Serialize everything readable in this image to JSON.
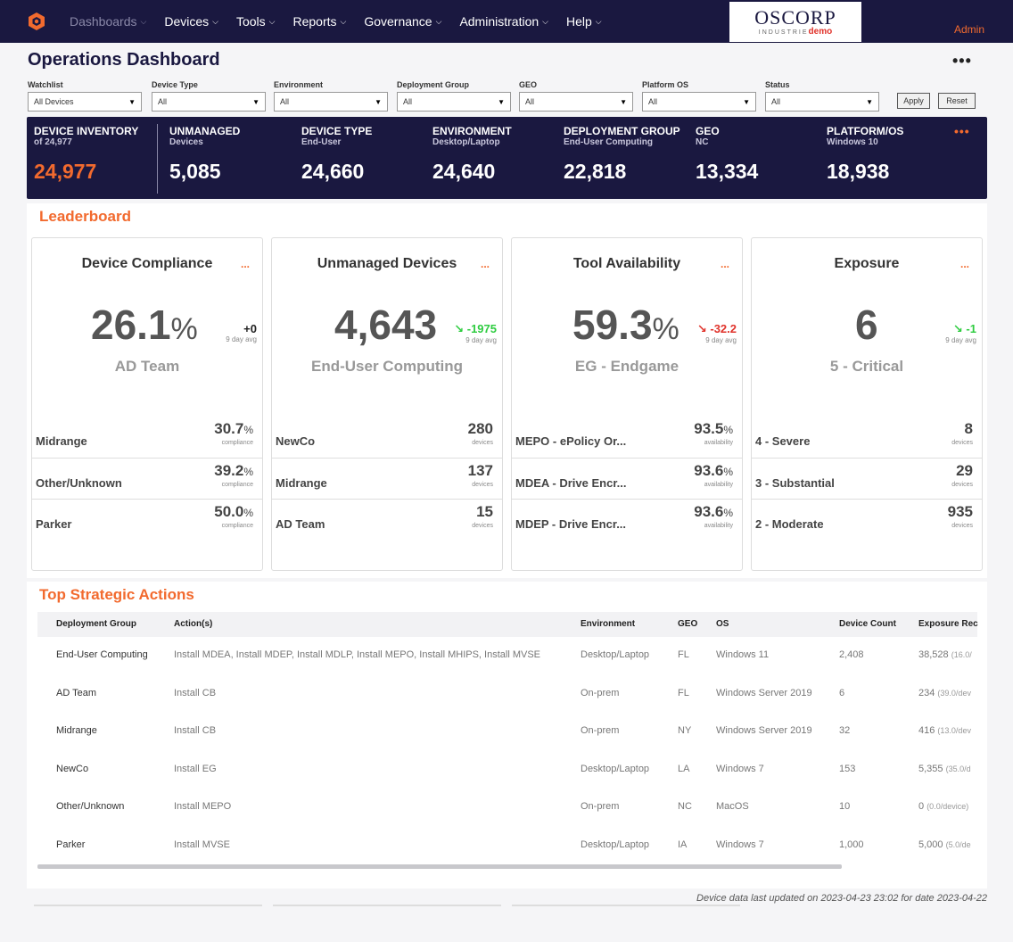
{
  "nav": {
    "items": [
      {
        "label": "Dashboards",
        "dim": true
      },
      {
        "label": "Devices"
      },
      {
        "label": "Tools"
      },
      {
        "label": "Reports"
      },
      {
        "label": "Governance"
      },
      {
        "label": "Administration"
      },
      {
        "label": "Help"
      }
    ],
    "brand_name": "OSCORP",
    "brand_sub": "INDUSTRIE",
    "brand_demo": "demo",
    "user": "Admin"
  },
  "page": {
    "title": "Operations Dashboard",
    "menu": "•••"
  },
  "filters": [
    {
      "label": "Watchlist",
      "value": "All Devices"
    },
    {
      "label": "Device Type",
      "value": "All"
    },
    {
      "label": "Environment",
      "value": "All"
    },
    {
      "label": "Deployment Group",
      "value": "All"
    },
    {
      "label": "GEO",
      "value": "All"
    },
    {
      "label": "Platform OS",
      "value": "All"
    },
    {
      "label": "Status",
      "value": "All"
    }
  ],
  "buttons": {
    "apply": "Apply",
    "reset": "Reset"
  },
  "kpi": {
    "menu": "•••",
    "cells": [
      {
        "label": "DEVICE INVENTORY",
        "sub": "of 24,977",
        "value": "24,977"
      },
      {
        "label": "UNMANAGED",
        "sub": "Devices",
        "value": "5,085"
      },
      {
        "label": "DEVICE TYPE",
        "sub": "End-User",
        "value": "24,660"
      },
      {
        "label": "ENVIRONMENT",
        "sub": "Desktop/Laptop",
        "value": "24,640"
      },
      {
        "label": "DEPLOYMENT GROUP",
        "sub": "End-User Computing",
        "value": "22,818"
      },
      {
        "label": "GEO",
        "sub": "NC",
        "value": "13,334"
      },
      {
        "label": "PLATFORM/OS",
        "sub": "Windows 10",
        "value": "18,938"
      }
    ]
  },
  "leaderboard": {
    "title": "Leaderboard",
    "cards": [
      {
        "title": "Device Compliance",
        "menu": "...",
        "big": "26.1",
        "big_unit": "%",
        "delta": "+0",
        "delta_label": "9 day avg",
        "delta_dir": "neutral",
        "team": "AD Team",
        "rows": [
          {
            "name": "Midrange",
            "value": "30.7",
            "unit": "%",
            "caption": "compliance"
          },
          {
            "name": "Other/Unknown",
            "value": "39.2",
            "unit": "%",
            "caption": "compliance"
          },
          {
            "name": "Parker",
            "value": "50.0",
            "unit": "%",
            "caption": "compliance"
          }
        ]
      },
      {
        "title": "Unmanaged Devices",
        "menu": "...",
        "big": "4,643",
        "big_unit": "",
        "delta": "↘ -1975",
        "delta_label": "9 day avg",
        "delta_dir": "green",
        "team": "End-User Computing",
        "rows": [
          {
            "name": "NewCo",
            "value": "280",
            "unit": "",
            "caption": "devices"
          },
          {
            "name": "Midrange",
            "value": "137",
            "unit": "",
            "caption": "devices"
          },
          {
            "name": "AD Team",
            "value": "15",
            "unit": "",
            "caption": "devices"
          }
        ]
      },
      {
        "title": "Tool Availability",
        "menu": "...",
        "big": "59.3",
        "big_unit": "%",
        "delta": "↘ -32.2",
        "delta_label": "9 day avg",
        "delta_dir": "red",
        "team": "EG - Endgame",
        "rows": [
          {
            "name": "MEPO - ePolicy Or...",
            "value": "93.5",
            "unit": "%",
            "caption": "availability"
          },
          {
            "name": "MDEA - Drive Encr...",
            "value": "93.6",
            "unit": "%",
            "caption": "availability"
          },
          {
            "name": "MDEP - Drive Encr...",
            "value": "93.6",
            "unit": "%",
            "caption": "availability"
          }
        ]
      },
      {
        "title": "Exposure",
        "menu": "...",
        "big": "6",
        "big_unit": "",
        "delta": "↘ -1",
        "delta_label": "9 day avg",
        "delta_dir": "green",
        "team": "5 - Critical",
        "rows": [
          {
            "name": "4 - Severe",
            "value": "8",
            "unit": "",
            "caption": "devices"
          },
          {
            "name": "3 - Substantial",
            "value": "29",
            "unit": "",
            "caption": "devices"
          },
          {
            "name": "2 - Moderate",
            "value": "935",
            "unit": "",
            "caption": "devices"
          }
        ]
      }
    ]
  },
  "actions": {
    "title": "Top Strategic Actions",
    "columns": [
      "Deployment Group",
      "Action(s)",
      "Environment",
      "GEO",
      "OS",
      "Device Count",
      "Exposure Rec"
    ],
    "rows": [
      {
        "group": "End-User Computing",
        "actions": "Install MDEA, Install MDEP, Install MDLP, Install MEPO, Install MHIPS, Install MVSE",
        "env": "Desktop/Laptop",
        "geo": "FL",
        "os": "Windows 11",
        "count": "2,408",
        "exposure": "38,528",
        "per": "(16.0/"
      },
      {
        "group": "AD Team",
        "actions": "Install CB",
        "env": "On-prem",
        "geo": "FL",
        "os": "Windows Server 2019",
        "count": "6",
        "exposure": "234",
        "per": "(39.0/dev"
      },
      {
        "group": "Midrange",
        "actions": "Install CB",
        "env": "On-prem",
        "geo": "NY",
        "os": "Windows Server 2019",
        "count": "32",
        "exposure": "416",
        "per": "(13.0/dev"
      },
      {
        "group": "NewCo",
        "actions": "Install EG",
        "env": "Desktop/Laptop",
        "geo": "LA",
        "os": "Windows 7",
        "count": "153",
        "exposure": "5,355",
        "per": "(35.0/d"
      },
      {
        "group": "Other/Unknown",
        "actions": "Install MEPO",
        "env": "On-prem",
        "geo": "NC",
        "os": "MacOS",
        "count": "10",
        "exposure": "0",
        "per": "(0.0/device)"
      },
      {
        "group": "Parker",
        "actions": "Install MVSE",
        "env": "Desktop/Laptop",
        "geo": "IA",
        "os": "Windows 7",
        "count": "1,000",
        "exposure": "5,000",
        "per": "(5.0/de"
      }
    ]
  },
  "footer": "Device data last updated on 2023-04-23 23:02 for date 2023-04-22"
}
